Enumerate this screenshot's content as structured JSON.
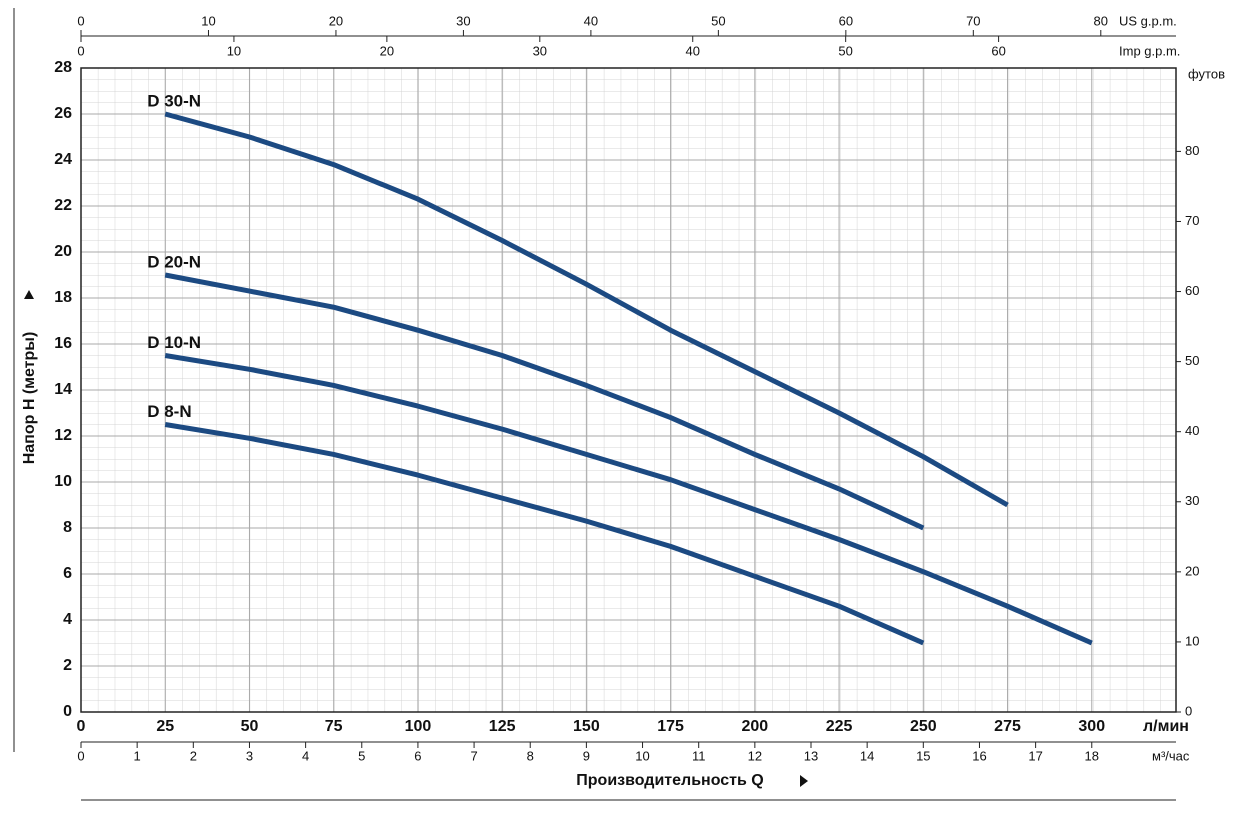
{
  "chart_data": {
    "type": "line",
    "xlim": [
      0,
      325
    ],
    "xticks": [
      0,
      25,
      50,
      75,
      100,
      125,
      150,
      175,
      200,
      225,
      250,
      275,
      300
    ],
    "x_unit": "л/мин",
    "xlabel": "Производительность  Q",
    "ylim": [
      0,
      28
    ],
    "yticks": [
      0,
      2,
      4,
      6,
      8,
      10,
      12,
      14,
      16,
      18,
      20,
      22,
      24,
      26,
      28
    ],
    "ylabel": "Напор H (метры)",
    "y2lim": [
      0,
      91.9
    ],
    "y2ticks": [
      0,
      10,
      20,
      30,
      40,
      50,
      60,
      70,
      80
    ],
    "y2_unit": "футов",
    "grid": true,
    "secondary_x_axes": [
      {
        "unit": "м³/час",
        "position": "bottom",
        "lim": [
          0,
          19.5
        ],
        "ticks": [
          0,
          1,
          2,
          3,
          4,
          5,
          6,
          7,
          8,
          9,
          10,
          11,
          12,
          13,
          14,
          15,
          16,
          17,
          18
        ]
      },
      {
        "unit": "US g.p.m.",
        "position": "top",
        "lim": [
          0,
          85.9
        ],
        "ticks": [
          0,
          10,
          20,
          30,
          40,
          50,
          60,
          70,
          80
        ]
      },
      {
        "unit": "Imp g.p.m.",
        "position": "top",
        "lim": [
          0,
          71.6
        ],
        "ticks": [
          0,
          10,
          20,
          30,
          40,
          50,
          60
        ]
      }
    ],
    "series": [
      {
        "name": "D 30-N",
        "color": "#1c4a82",
        "x": [
          25,
          50,
          75,
          100,
          125,
          150,
          175,
          200,
          225,
          250,
          275
        ],
        "values": [
          26,
          25,
          23.8,
          22.3,
          20.5,
          18.6,
          16.6,
          14.8,
          13,
          11.1,
          9
        ]
      },
      {
        "name": "D 20-N",
        "color": "#1c4a82",
        "x": [
          25,
          50,
          75,
          100,
          125,
          150,
          175,
          200,
          225,
          250
        ],
        "values": [
          19,
          18.3,
          17.6,
          16.6,
          15.5,
          14.2,
          12.8,
          11.2,
          9.7,
          8
        ]
      },
      {
        "name": "D 10-N",
        "color": "#1c4a82",
        "x": [
          25,
          50,
          75,
          100,
          125,
          150,
          175,
          200,
          225,
          250,
          275,
          300
        ],
        "values": [
          15.5,
          14.9,
          14.2,
          13.3,
          12.3,
          11.2,
          10.1,
          8.8,
          7.5,
          6.1,
          4.6,
          3
        ]
      },
      {
        "name": "D 8-N",
        "color": "#1c4a82",
        "x": [
          25,
          50,
          75,
          100,
          125,
          150,
          175,
          200,
          225,
          250
        ],
        "values": [
          12.5,
          11.9,
          11.2,
          10.3,
          9.3,
          8.3,
          7.2,
          5.9,
          4.6,
          3
        ]
      }
    ]
  }
}
